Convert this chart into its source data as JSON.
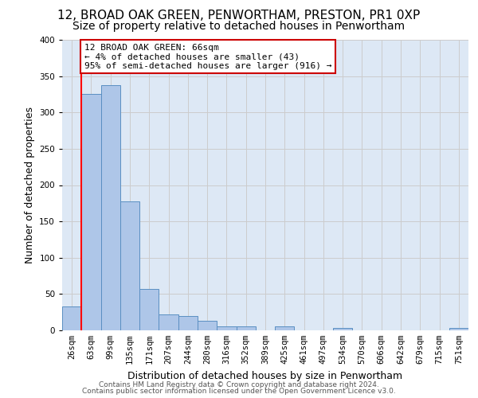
{
  "title_line1": "12, BROAD OAK GREEN, PENWORTHAM, PRESTON, PR1 0XP",
  "title_line2": "Size of property relative to detached houses in Penwortham",
  "xlabel": "Distribution of detached houses by size in Penwortham",
  "ylabel": "Number of detached properties",
  "footer_line1": "Contains HM Land Registry data © Crown copyright and database right 2024.",
  "footer_line2": "Contains public sector information licensed under the Open Government Licence v3.0.",
  "bin_labels": [
    "26sqm",
    "63sqm",
    "99sqm",
    "135sqm",
    "171sqm",
    "207sqm",
    "244sqm",
    "280sqm",
    "316sqm",
    "352sqm",
    "389sqm",
    "425sqm",
    "461sqm",
    "497sqm",
    "534sqm",
    "570sqm",
    "606sqm",
    "642sqm",
    "679sqm",
    "715sqm",
    "751sqm"
  ],
  "bar_values": [
    33,
    325,
    337,
    177,
    57,
    22,
    20,
    13,
    5,
    5,
    0,
    5,
    0,
    0,
    3,
    0,
    0,
    0,
    0,
    0,
    3
  ],
  "bar_color": "#aec6e8",
  "bar_edge_color": "#5a8fc2",
  "annotation_text_line1": "12 BROAD OAK GREEN: 66sqm",
  "annotation_text_line2": "← 4% of detached houses are smaller (43)",
  "annotation_text_line3": "95% of semi-detached houses are larger (916) →",
  "annotation_box_color": "#ffffff",
  "annotation_box_edge_color": "#cc0000",
  "red_line_bin": 0.5,
  "ylim": [
    0,
    400
  ],
  "yticks": [
    0,
    50,
    100,
    150,
    200,
    250,
    300,
    350,
    400
  ],
  "grid_color": "#cccccc",
  "ax_background_color": "#dde8f5",
  "background_color": "#ffffff",
  "title_fontsize": 11,
  "subtitle_fontsize": 10,
  "ylabel_fontsize": 9,
  "xlabel_fontsize": 9,
  "tick_fontsize": 7.5,
  "footer_fontsize": 6.5,
  "annot_fontsize": 8
}
